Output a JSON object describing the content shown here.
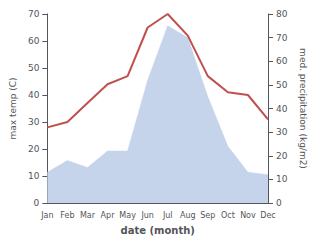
{
  "chart_data": {
    "type": "line",
    "categories": [
      "Jan",
      "Feb",
      "Mar",
      "Apr",
      "May",
      "Jun",
      "Jul",
      "Aug",
      "Sep",
      "Oct",
      "Nov",
      "Dec"
    ],
    "series": [
      {
        "type": "area",
        "color": "#c5d4ea",
        "axis": "y2",
        "values": [
          13,
          18,
          15,
          22,
          22,
          52,
          75,
          70,
          45,
          24,
          13,
          12
        ]
      },
      {
        "type": "line",
        "color": "#c0504d",
        "axis": "y",
        "values": [
          28,
          30,
          37,
          44,
          47,
          65,
          70,
          62,
          47,
          41,
          40,
          31
        ]
      }
    ],
    "x_label": "date (month)",
    "y_label": "max temp (C)",
    "y2_label": "med. precipitation (kg/m2)",
    "ylim": [
      0,
      70
    ],
    "yticks": [
      0,
      10,
      20,
      30,
      40,
      50,
      60,
      70
    ],
    "y2lim": [
      0,
      80
    ],
    "y2ticks": [
      0,
      10,
      20,
      30,
      40,
      50,
      60,
      70,
      80
    ],
    "grid": false
  }
}
